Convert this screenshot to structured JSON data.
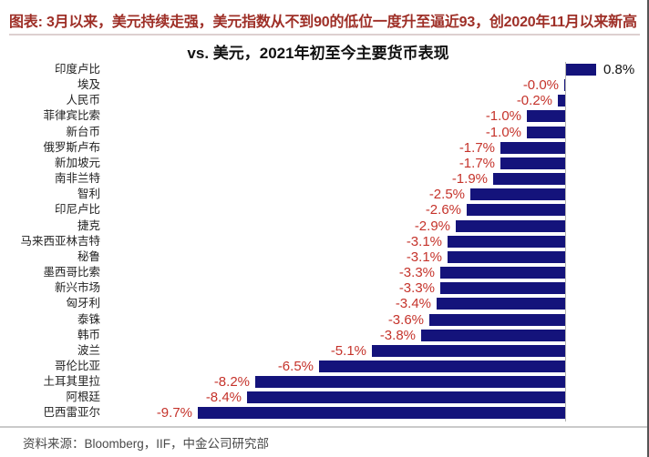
{
  "header": {
    "caption": "图表: 3月以来，美元持续走强，美元指数从不到90的低位一度升至逼近93，创2020年11月以来新高"
  },
  "chart_data": {
    "type": "bar",
    "orientation": "horizontal",
    "title": "vs. 美元，2021年初至今主要货币表现",
    "unit": "%",
    "categories": [
      "印度卢比",
      "埃及",
      "人民币",
      "菲律宾比索",
      "新台币",
      "俄罗斯卢布",
      "新加坡元",
      "南非兰特",
      "智利",
      "印尼卢比",
      "捷克",
      "马来西亚林吉特",
      "秘鲁",
      "墨西哥比索",
      "新兴市场",
      "匈牙利",
      "泰铢",
      "韩币",
      "波兰",
      "哥伦比亚",
      "土耳其里拉",
      "阿根廷",
      "巴西雷亚尔"
    ],
    "values": [
      0.8,
      -0.0,
      -0.2,
      -1.0,
      -1.0,
      -1.7,
      -1.7,
      -1.9,
      -2.5,
      -2.6,
      -2.9,
      -3.1,
      -3.1,
      -3.3,
      -3.3,
      -3.4,
      -3.6,
      -3.8,
      -5.1,
      -6.5,
      -8.2,
      -8.4,
      -9.7
    ],
    "labels": [
      "0.8%",
      "-0.0%",
      "-0.2%",
      "-1.0%",
      "-1.0%",
      "-1.7%",
      "-1.7%",
      "-1.9%",
      "-2.5%",
      "-2.6%",
      "-2.9%",
      "-3.1%",
      "-3.1%",
      "-3.3%",
      "-3.3%",
      "-3.4%",
      "-3.6%",
      "-3.8%",
      "-5.1%",
      "-6.5%",
      "-8.2%",
      "-8.4%",
      "-9.7%"
    ],
    "xlim": [
      -10,
      1
    ],
    "zero_axis": true,
    "legend": null,
    "grid": false,
    "bar_color": "#14137b",
    "negative_label_color": "#c5332b",
    "positive_label_color": "#111111",
    "axis_line_color": "#b3b3b3"
  },
  "footer": {
    "source": "资料来源：Bloomberg，IIF，中金公司研究部"
  },
  "colors": {
    "header_text": "#9e2f27",
    "bar": "#14137b",
    "value_negative": "#c5332b",
    "value_positive": "#111111"
  }
}
